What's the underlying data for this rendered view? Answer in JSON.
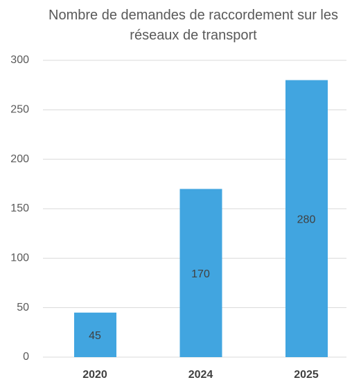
{
  "chart_data": {
    "type": "bar",
    "title": "Nombre de demandes de raccordement sur les réseaux de transport",
    "categories": [
      "2020",
      "2024",
      "2025"
    ],
    "values": [
      45,
      170,
      280
    ],
    "color": "#41a5e0",
    "ylim": [
      0,
      300
    ],
    "yticks": [
      0,
      50,
      100,
      150,
      200,
      250,
      300
    ],
    "grid": true,
    "data_labels": true
  }
}
